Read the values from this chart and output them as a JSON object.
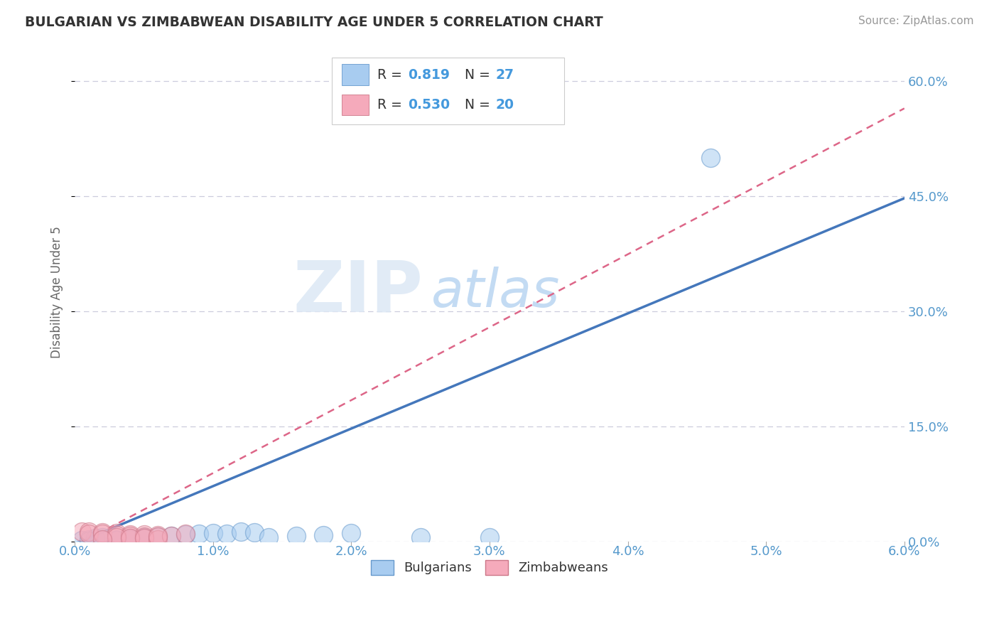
{
  "title": "BULGARIAN VS ZIMBABWEAN DISABILITY AGE UNDER 5 CORRELATION CHART",
  "source": "Source: ZipAtlas.com",
  "ylabel": "Disability Age Under 5",
  "xlim": [
    0.0,
    0.06
  ],
  "ylim": [
    0.0,
    0.65
  ],
  "xticks": [
    0.0,
    0.01,
    0.02,
    0.03,
    0.04,
    0.05,
    0.06
  ],
  "yticks_right": [
    0.0,
    0.15,
    0.3,
    0.45,
    0.6
  ],
  "ytick_labels_right": [
    "0.0%",
    "15.0%",
    "30.0%",
    "45.0%",
    "60.0%"
  ],
  "xtick_labels": [
    "0.0%",
    "1.0%",
    "2.0%",
    "3.0%",
    "4.0%",
    "5.0%",
    "6.0%"
  ],
  "blue_color": "#A8CCF0",
  "pink_color": "#F5AABB",
  "blue_edge_color": "#6699CC",
  "pink_edge_color": "#CC7788",
  "blue_line_color": "#4477BB",
  "pink_line_color": "#DD6688",
  "axis_label_color": "#5599CC",
  "title_color": "#333333",
  "grid_color": "#CCCCDD",
  "legend_value_color": "#4499DD",
  "bulgarian_R": 0.819,
  "bulgarian_N": 27,
  "zimbabwean_R": 0.53,
  "zimbabwean_N": 20,
  "bulgarian_points": [
    [
      0.0005,
      0.002
    ],
    [
      0.001,
      0.003
    ],
    [
      0.0015,
      0.004
    ],
    [
      0.001,
      0.001
    ],
    [
      0.002,
      0.003
    ],
    [
      0.002,
      0.005
    ],
    [
      0.003,
      0.003
    ],
    [
      0.003,
      0.002
    ],
    [
      0.004,
      0.004
    ],
    [
      0.005,
      0.005
    ],
    [
      0.006,
      0.006
    ],
    [
      0.004,
      0.003
    ],
    [
      0.005,
      0.004
    ],
    [
      0.007,
      0.007
    ],
    [
      0.008,
      0.009
    ],
    [
      0.009,
      0.01
    ],
    [
      0.01,
      0.011
    ],
    [
      0.011,
      0.01
    ],
    [
      0.012,
      0.013
    ],
    [
      0.013,
      0.012
    ],
    [
      0.014,
      0.005
    ],
    [
      0.016,
      0.007
    ],
    [
      0.018,
      0.008
    ],
    [
      0.02,
      0.011
    ],
    [
      0.025,
      0.005
    ],
    [
      0.03,
      0.005
    ],
    [
      0.046,
      0.5
    ]
  ],
  "zimbabwean_points": [
    [
      0.0005,
      0.013
    ],
    [
      0.001,
      0.013
    ],
    [
      0.001,
      0.01
    ],
    [
      0.002,
      0.012
    ],
    [
      0.002,
      0.01
    ],
    [
      0.003,
      0.011
    ],
    [
      0.003,
      0.008
    ],
    [
      0.004,
      0.009
    ],
    [
      0.004,
      0.007
    ],
    [
      0.005,
      0.009
    ],
    [
      0.005,
      0.006
    ],
    [
      0.006,
      0.008
    ],
    [
      0.003,
      0.005
    ],
    [
      0.004,
      0.004
    ],
    [
      0.005,
      0.004
    ],
    [
      0.006,
      0.003
    ],
    [
      0.002,
      0.003
    ],
    [
      0.007,
      0.007
    ],
    [
      0.008,
      0.01
    ],
    [
      0.006,
      0.006
    ]
  ],
  "blue_reg_slope": 7.5,
  "blue_reg_intercept": 0.0,
  "pink_reg_slope": 9.0,
  "pink_reg_intercept": 0.0,
  "watermark_zip": "ZIP",
  "watermark_atlas": "atlas",
  "background_color": "#FFFFFF"
}
